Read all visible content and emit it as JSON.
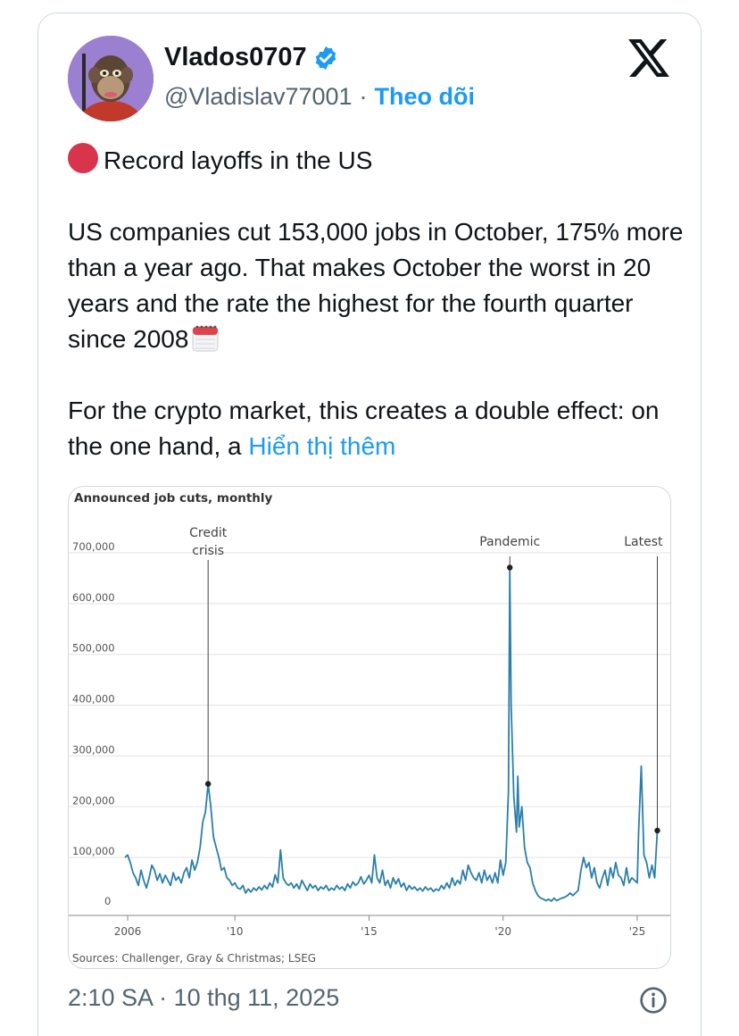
{
  "tweet": {
    "author_name": "Vlados0707",
    "handle": "@Vladislav77001",
    "separator": "·",
    "follow_label": "Theo dõi",
    "line1": "Record layoffs in the US",
    "para2": "US companies cut 153,000 jobs in October, 175% more than a year ago. That makes October the worst in 20 years and the rate the highest for the fourth quarter since 2008",
    "para3": "For the crypto market, this creates a double effect: on the one hand, a",
    "show_more": "Hiển thị thêm",
    "timestamp": "2:10 SA · 10 thg 11, 2025"
  },
  "icons": {
    "verified": "verified-badge-icon",
    "x_logo": "x-logo-icon",
    "red_circle": "red-circle-icon",
    "calendar": "calendar-icon",
    "info": "info-icon"
  },
  "colors": {
    "accent": "#1d9bf0",
    "line": "#2a7fab",
    "red_dot": "#d8344b"
  },
  "chart_data": {
    "type": "line",
    "title": "Announced job cuts, monthly",
    "source": "Sources: Challenger, Gray & Christmas; LSEG",
    "xlabel": "",
    "ylabel": "",
    "ylim": [
      0,
      700000
    ],
    "xlim": [
      2005.6,
      2025.9
    ],
    "y_ticks": [
      0,
      100000,
      200000,
      300000,
      400000,
      500000,
      600000,
      700000
    ],
    "y_tick_labels": [
      "0",
      "100,000",
      "200,000",
      "300,000",
      "400,000",
      "500,000",
      "600,000",
      "700,000"
    ],
    "x_ticks": [
      2006,
      2010,
      2015,
      2020,
      2025
    ],
    "x_tick_labels": [
      "2006",
      "'10",
      "'15",
      "'20",
      "'25"
    ],
    "grid": true,
    "annotations": [
      {
        "label": "Credit crisis",
        "x": 2009.0,
        "y": 245000
      },
      {
        "label": "Pandemic",
        "x": 2020.25,
        "y": 671000
      },
      {
        "label": "Latest",
        "x": 2025.75,
        "y": 153000
      }
    ],
    "series": [
      {
        "points": [
          [
            2005.9,
            100000
          ],
          [
            2006.0,
            105000
          ],
          [
            2006.1,
            90000
          ],
          [
            2006.2,
            70000
          ],
          [
            2006.3,
            60000
          ],
          [
            2006.4,
            45000
          ],
          [
            2006.5,
            75000
          ],
          [
            2006.6,
            55000
          ],
          [
            2006.7,
            40000
          ],
          [
            2006.8,
            60000
          ],
          [
            2006.9,
            85000
          ],
          [
            2007.0,
            75000
          ],
          [
            2007.1,
            55000
          ],
          [
            2007.2,
            68000
          ],
          [
            2007.3,
            50000
          ],
          [
            2007.4,
            65000
          ],
          [
            2007.5,
            55000
          ],
          [
            2007.6,
            45000
          ],
          [
            2007.7,
            70000
          ],
          [
            2007.8,
            55000
          ],
          [
            2007.9,
            62000
          ],
          [
            2008.0,
            50000
          ],
          [
            2008.1,
            70000
          ],
          [
            2008.2,
            80000
          ],
          [
            2008.3,
            60000
          ],
          [
            2008.4,
            95000
          ],
          [
            2008.5,
            75000
          ],
          [
            2008.6,
            90000
          ],
          [
            2008.7,
            120000
          ],
          [
            2008.8,
            170000
          ],
          [
            2008.9,
            190000
          ],
          [
            2009.0,
            245000
          ],
          [
            2009.1,
            200000
          ],
          [
            2009.2,
            140000
          ],
          [
            2009.3,
            120000
          ],
          [
            2009.4,
            100000
          ],
          [
            2009.5,
            75000
          ],
          [
            2009.6,
            80000
          ],
          [
            2009.7,
            60000
          ],
          [
            2009.8,
            55000
          ],
          [
            2009.9,
            45000
          ],
          [
            2010.0,
            50000
          ],
          [
            2010.1,
            40000
          ],
          [
            2010.2,
            38000
          ],
          [
            2010.3,
            45000
          ],
          [
            2010.4,
            30000
          ],
          [
            2010.5,
            38000
          ],
          [
            2010.6,
            32000
          ],
          [
            2010.7,
            40000
          ],
          [
            2010.8,
            35000
          ],
          [
            2010.9,
            42000
          ],
          [
            2011.0,
            36000
          ],
          [
            2011.1,
            45000
          ],
          [
            2011.2,
            38000
          ],
          [
            2011.3,
            50000
          ],
          [
            2011.4,
            42000
          ],
          [
            2011.5,
            66000
          ],
          [
            2011.6,
            50000
          ],
          [
            2011.7,
            115000
          ],
          [
            2011.8,
            60000
          ],
          [
            2011.9,
            50000
          ],
          [
            2012.0,
            45000
          ],
          [
            2012.1,
            50000
          ],
          [
            2012.2,
            40000
          ],
          [
            2012.3,
            48000
          ],
          [
            2012.4,
            38000
          ],
          [
            2012.5,
            55000
          ],
          [
            2012.6,
            45000
          ],
          [
            2012.7,
            35000
          ],
          [
            2012.8,
            48000
          ],
          [
            2012.9,
            40000
          ],
          [
            2013.0,
            45000
          ],
          [
            2013.1,
            35000
          ],
          [
            2013.2,
            42000
          ],
          [
            2013.3,
            38000
          ],
          [
            2013.4,
            45000
          ],
          [
            2013.5,
            35000
          ],
          [
            2013.6,
            40000
          ],
          [
            2013.7,
            36000
          ],
          [
            2013.8,
            45000
          ],
          [
            2013.9,
            38000
          ],
          [
            2014.0,
            42000
          ],
          [
            2014.1,
            35000
          ],
          [
            2014.2,
            48000
          ],
          [
            2014.3,
            40000
          ],
          [
            2014.4,
            52000
          ],
          [
            2014.5,
            45000
          ],
          [
            2014.6,
            50000
          ],
          [
            2014.7,
            62000
          ],
          [
            2014.8,
            48000
          ],
          [
            2014.9,
            55000
          ],
          [
            2015.0,
            65000
          ],
          [
            2015.1,
            50000
          ],
          [
            2015.2,
            105000
          ],
          [
            2015.3,
            60000
          ],
          [
            2015.4,
            50000
          ],
          [
            2015.5,
            75000
          ],
          [
            2015.6,
            45000
          ],
          [
            2015.7,
            55000
          ],
          [
            2015.8,
            40000
          ],
          [
            2015.9,
            60000
          ],
          [
            2016.0,
            48000
          ],
          [
            2016.1,
            58000
          ],
          [
            2016.2,
            42000
          ],
          [
            2016.3,
            50000
          ],
          [
            2016.4,
            35000
          ],
          [
            2016.5,
            45000
          ],
          [
            2016.6,
            38000
          ],
          [
            2016.7,
            42000
          ],
          [
            2016.8,
            35000
          ],
          [
            2016.9,
            40000
          ],
          [
            2017.0,
            34000
          ],
          [
            2017.1,
            42000
          ],
          [
            2017.2,
            36000
          ],
          [
            2017.3,
            40000
          ],
          [
            2017.4,
            33000
          ],
          [
            2017.5,
            38000
          ],
          [
            2017.6,
            35000
          ],
          [
            2017.7,
            45000
          ],
          [
            2017.8,
            38000
          ],
          [
            2017.9,
            50000
          ],
          [
            2018.0,
            40000
          ],
          [
            2018.1,
            60000
          ],
          [
            2018.2,
            45000
          ],
          [
            2018.3,
            55000
          ],
          [
            2018.4,
            48000
          ],
          [
            2018.5,
            75000
          ],
          [
            2018.6,
            55000
          ],
          [
            2018.7,
            85000
          ],
          [
            2018.8,
            70000
          ],
          [
            2018.9,
            60000
          ],
          [
            2019.0,
            55000
          ],
          [
            2019.1,
            70000
          ],
          [
            2019.2,
            50000
          ],
          [
            2019.3,
            75000
          ],
          [
            2019.4,
            55000
          ],
          [
            2019.5,
            65000
          ],
          [
            2019.6,
            50000
          ],
          [
            2019.7,
            70000
          ],
          [
            2019.8,
            50000
          ],
          [
            2019.9,
            95000
          ],
          [
            2020.0,
            65000
          ],
          [
            2020.1,
            90000
          ],
          [
            2020.2,
            230000
          ],
          [
            2020.25,
            671000
          ],
          [
            2020.3,
            400000
          ],
          [
            2020.4,
            220000
          ],
          [
            2020.5,
            150000
          ],
          [
            2020.55,
            260000
          ],
          [
            2020.6,
            160000
          ],
          [
            2020.7,
            200000
          ],
          [
            2020.8,
            120000
          ],
          [
            2020.9,
            90000
          ],
          [
            2021.0,
            80000
          ],
          [
            2021.1,
            50000
          ],
          [
            2021.2,
            35000
          ],
          [
            2021.3,
            25000
          ],
          [
            2021.4,
            20000
          ],
          [
            2021.5,
            18000
          ],
          [
            2021.6,
            15000
          ],
          [
            2021.7,
            18000
          ],
          [
            2021.8,
            14000
          ],
          [
            2021.9,
            20000
          ],
          [
            2022.0,
            15000
          ],
          [
            2022.1,
            18000
          ],
          [
            2022.2,
            20000
          ],
          [
            2022.3,
            22000
          ],
          [
            2022.4,
            25000
          ],
          [
            2022.5,
            30000
          ],
          [
            2022.6,
            25000
          ],
          [
            2022.7,
            30000
          ],
          [
            2022.8,
            35000
          ],
          [
            2022.9,
            75000
          ],
          [
            2023.0,
            100000
          ],
          [
            2023.1,
            80000
          ],
          [
            2023.2,
            90000
          ],
          [
            2023.3,
            60000
          ],
          [
            2023.4,
            80000
          ],
          [
            2023.5,
            50000
          ],
          [
            2023.6,
            40000
          ],
          [
            2023.7,
            60000
          ],
          [
            2023.8,
            75000
          ],
          [
            2023.9,
            45000
          ],
          [
            2024.0,
            80000
          ],
          [
            2024.1,
            60000
          ],
          [
            2024.2,
            90000
          ],
          [
            2024.3,
            65000
          ],
          [
            2024.4,
            60000
          ],
          [
            2024.5,
            45000
          ],
          [
            2024.6,
            80000
          ],
          [
            2024.7,
            50000
          ],
          [
            2024.8,
            60000
          ],
          [
            2024.9,
            55000
          ],
          [
            2025.0,
            50000
          ],
          [
            2025.05,
            150000
          ],
          [
            2025.15,
            280000
          ],
          [
            2025.25,
            105000
          ],
          [
            2025.35,
            90000
          ],
          [
            2025.45,
            60000
          ],
          [
            2025.55,
            85000
          ],
          [
            2025.65,
            60000
          ],
          [
            2025.75,
            153000
          ]
        ]
      }
    ]
  }
}
